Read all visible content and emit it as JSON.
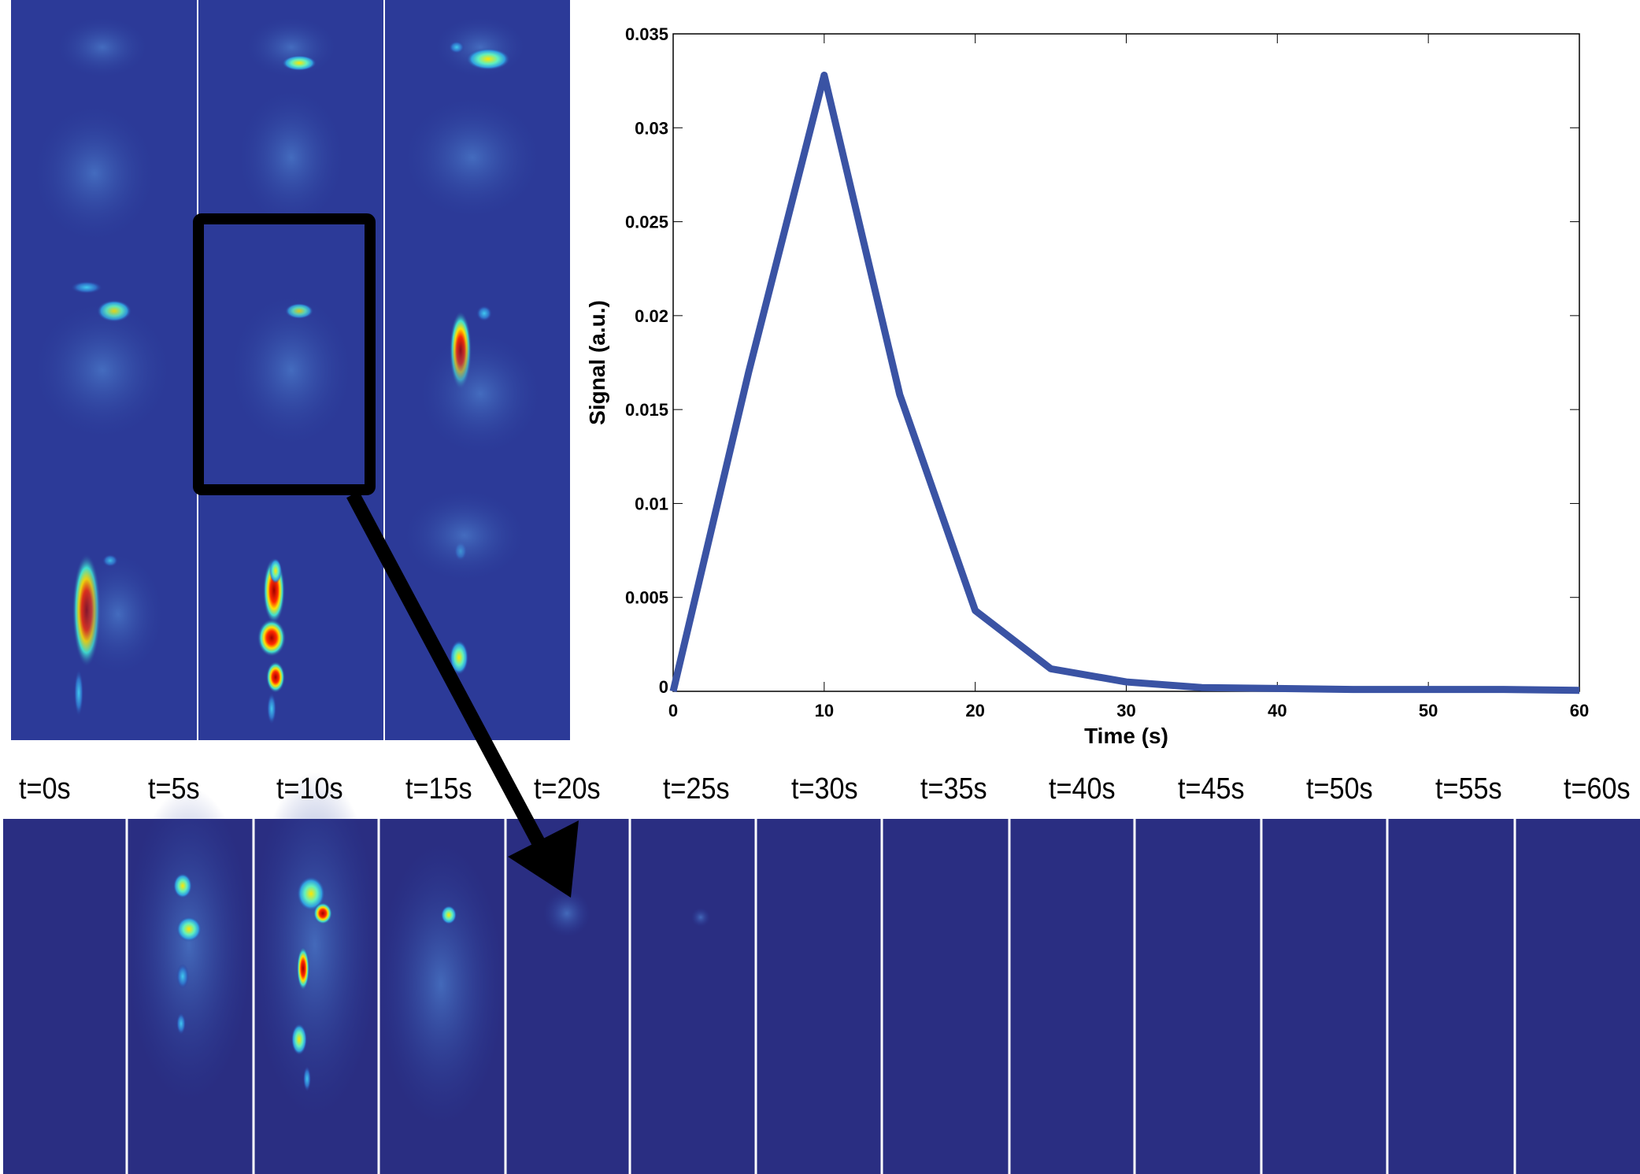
{
  "colors": {
    "line": "#3a53a4",
    "panel_bg": "#2a2e82",
    "arrow": "#000000"
  },
  "chart_data": {
    "type": "line",
    "xlabel": "Time (s)",
    "ylabel": "Signal (a.u.)",
    "xlim": [
      0,
      60
    ],
    "ylim": [
      0,
      0.035
    ],
    "grid": false,
    "xticks": [
      "0",
      "10",
      "20",
      "30",
      "40",
      "50",
      "60"
    ],
    "yticks": [
      "0",
      "0.005",
      "0.01",
      "0.015",
      "0.02",
      "0.025",
      "0.03",
      "0.035"
    ],
    "x": [
      0,
      5,
      10,
      15,
      20,
      25,
      30,
      35,
      40,
      45,
      50,
      55,
      60
    ],
    "values": [
      0,
      0.017,
      0.0328,
      0.0158,
      0.0043,
      0.0012,
      0.0005,
      0.0002,
      0.00015,
      0.0001,
      0.0001,
      0.0001,
      5e-05
    ]
  },
  "timeline": {
    "labels": [
      "t=0s",
      "t=5s",
      "t=10s",
      "t=15s",
      "t=20s",
      "t=25s",
      "t=30s",
      "t=35s",
      "t=40s",
      "t=45s",
      "t=50s",
      "t=55s",
      "t=60s"
    ]
  }
}
